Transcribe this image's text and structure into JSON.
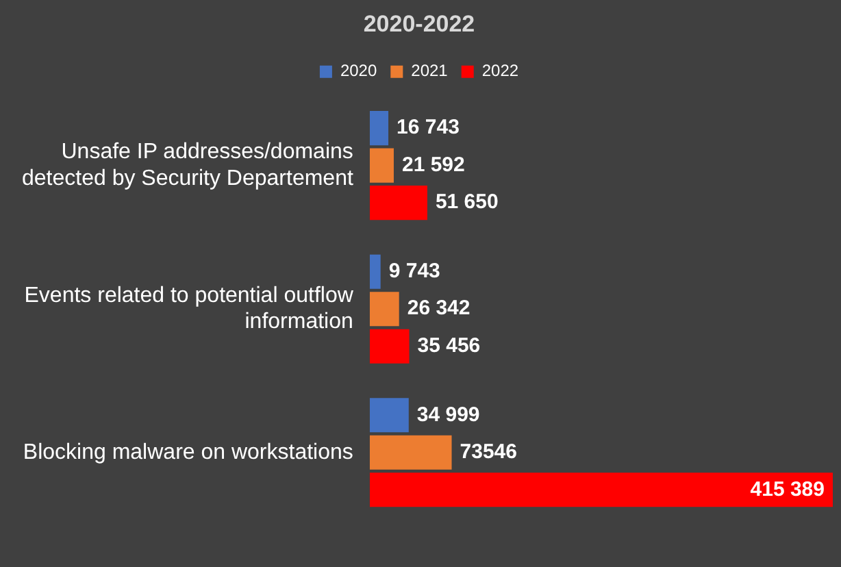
{
  "chart_data": {
    "type": "bar",
    "orientation": "horizontal",
    "title": "2020-2022",
    "legend": "top",
    "categories": [
      "Unsafe IP addresses/domains detected by Security Departement",
      "Events related to potential outflow information",
      "Blocking malware on workstations"
    ],
    "series": [
      {
        "name": "2020",
        "color": "#4472c4",
        "values": [
          16743,
          9743,
          34999
        ],
        "value_labels": [
          "16 743",
          "9 743",
          "34 999"
        ]
      },
      {
        "name": "2021",
        "color": "#ed7d31",
        "values": [
          21592,
          26342,
          73546
        ],
        "value_labels": [
          "21 592",
          "26 342",
          "73546"
        ]
      },
      {
        "name": "2022",
        "color": "#ff0000",
        "values": [
          51650,
          35456,
          415389
        ],
        "value_labels": [
          "51 650",
          "35 456",
          "415 389"
        ]
      }
    ]
  }
}
